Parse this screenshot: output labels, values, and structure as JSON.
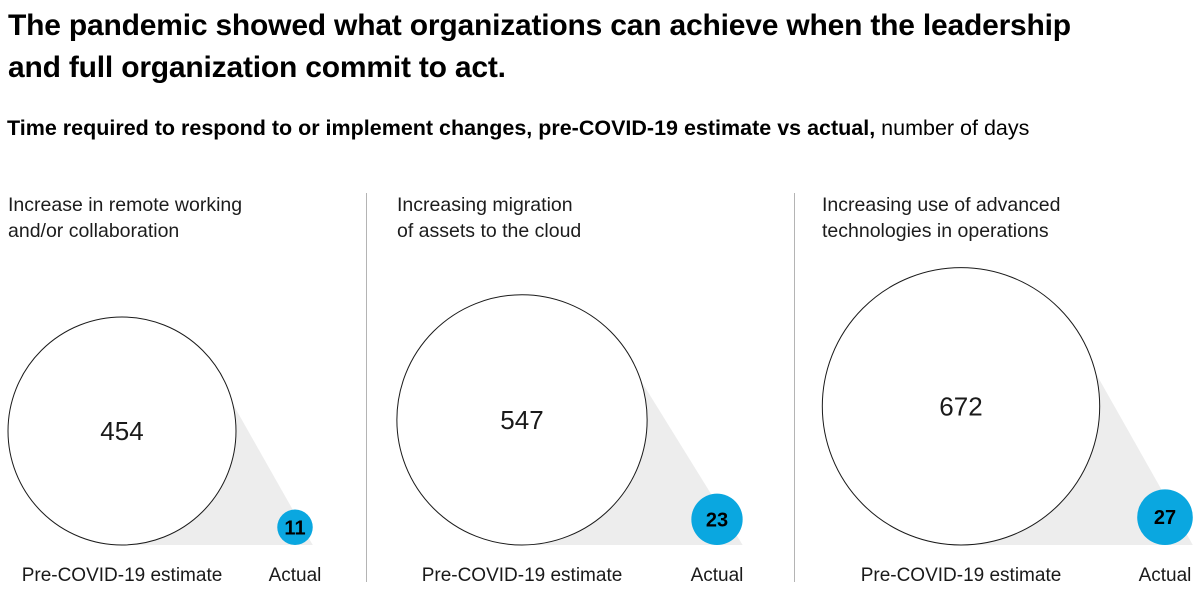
{
  "title": {
    "text": "The pandemic showed what organizations can achieve when the leadership and full organization commit to act.",
    "lines": [
      "The pandemic showed what organizations can achieve when the leadership",
      "and full organization commit to act."
    ]
  },
  "subtitle": {
    "bold": "Time required to respond to or implement changes, pre-COVID-19 estimate vs actual,",
    "regular": " number of days"
  },
  "chart_data": {
    "type": "bubble",
    "subtype": "proportional-area circle comparison, 3 panels",
    "unit": "number of days",
    "series_labels": {
      "estimate": "Pre-COVID-19 estimate",
      "actual": "Actual"
    },
    "panels": [
      {
        "category": "Increase in remote working and/or collaboration",
        "category_lines": [
          "Increase in remote working",
          "and/or collaboration"
        ],
        "pre_covid_estimate": 454,
        "actual": 11
      },
      {
        "category": "Increasing migration of assets to the cloud",
        "category_lines": [
          "Increasing migration",
          "of assets to the cloud"
        ],
        "pre_covid_estimate": 547,
        "actual": 23
      },
      {
        "category": "Increasing use of advanced technologies in operations",
        "category_lines": [
          "Increasing use of advanced",
          "technologies in operations"
        ],
        "pre_covid_estimate": 672,
        "actual": 27
      }
    ],
    "colors": {
      "actual_fill": "#0AA7E0",
      "estimate_fill": "#FFFFFF",
      "estimate_stroke": "#1A1A1A",
      "triangle_fill": "#EDEDED",
      "divider": "#B4B4B4",
      "text": "#1A1A1A"
    }
  }
}
